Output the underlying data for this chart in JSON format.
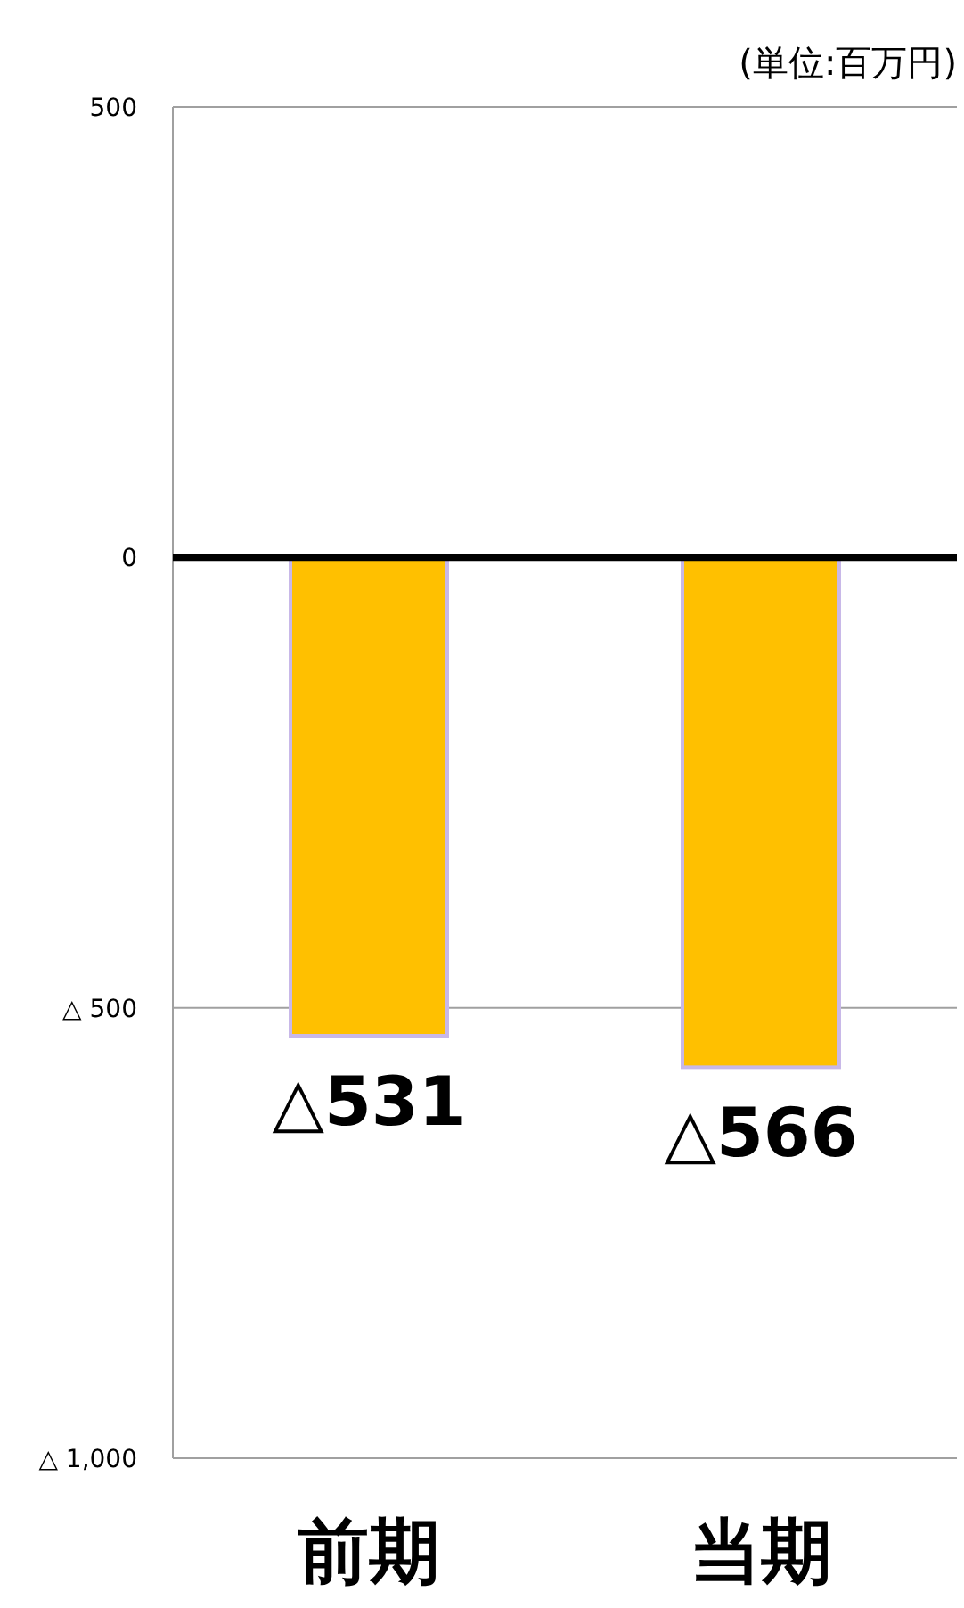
{
  "chart_data": {
    "type": "bar",
    "annotations": [
      "(単位:百万円)"
    ],
    "categories": [
      "前期",
      "当期"
    ],
    "series": [
      {
        "color": "#ffc000",
        "values": [
          -531,
          -566
        ]
      }
    ],
    "value_labels": [
      "△531",
      "△566"
    ],
    "ylim": [
      -1000,
      500
    ],
    "yticks": [
      {
        "value": -1000,
        "label": "△ 1,000"
      },
      {
        "value": -500,
        "label": "△ 500"
      },
      0,
      500
    ],
    "ref_lines": [
      {
        "axis": "y",
        "value": -500,
        "color": "#a0a0a0"
      }
    ]
  }
}
